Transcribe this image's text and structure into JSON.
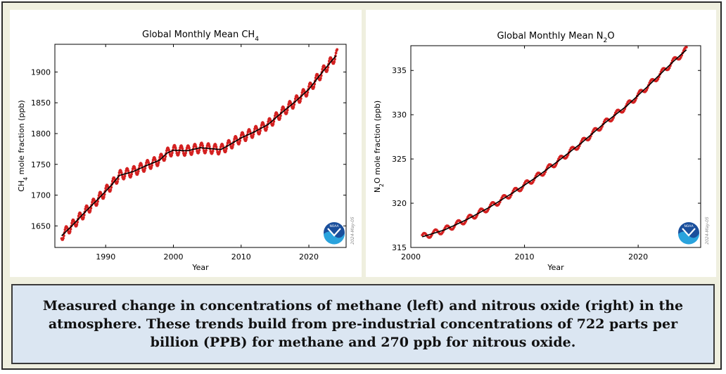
{
  "chart_data": [
    {
      "type": "line",
      "title_prefix": "Global Monthly Mean CH",
      "title_sub": "4",
      "xlabel": "Year",
      "ylabel_prefix": "CH",
      "ylabel_sub": "4",
      "ylabel_suffix": " mole fraction (ppb)",
      "xlim": [
        1982.5,
        2025.5
      ],
      "ylim": [
        1615,
        1945
      ],
      "xticks": [
        1990,
        2000,
        2010,
        2020
      ],
      "yticks": [
        1650,
        1700,
        1750,
        1800,
        1850,
        1900
      ],
      "series": [
        {
          "color": "#d42020",
          "trend_color": "#000000",
          "seasonal_amplitude": 8,
          "trend": {
            "x": [
              1983.5,
              1985,
              1987,
              1989,
              1991,
              1992,
              1994,
              1996,
              1998,
              1999,
              2000,
              2002,
              2004,
              2006,
              2007,
              2008,
              2010,
              2012,
              2014,
              2016,
              2018,
              2020,
              2022,
              2024.2
            ],
            "y": [
              1634,
              1650,
              1673,
              1695,
              1718,
              1732,
              1738,
              1748,
              1757,
              1768,
              1773,
              1772,
              1777,
              1775,
              1774,
              1780,
              1793,
              1803,
              1815,
              1834,
              1852,
              1872,
              1900,
              1929
            ]
          }
        }
      ],
      "watermark": "2024-May-05",
      "logo_text": "NOAA"
    },
    {
      "type": "line",
      "title_prefix": "Global Monthly Mean N",
      "title_sub": "2",
      "title_suffix": "O",
      "xlabel": "Year",
      "ylabel_prefix": "N",
      "ylabel_sub": "2",
      "ylabel_suffix": "O mole fraction (ppb)",
      "xlim": [
        2000,
        2025.5
      ],
      "ylim": [
        315,
        337.8
      ],
      "xticks": [
        2000,
        2010,
        2020
      ],
      "yticks": [
        315,
        320,
        325,
        330,
        335
      ],
      "series": [
        {
          "color": "#d42020",
          "trend_color": "#000000",
          "seasonal_amplitude": 0.35,
          "trend": {
            "x": [
              2001,
              2003,
              2005,
              2007,
              2009,
              2011,
              2013,
              2015,
              2017,
              2019,
              2021,
              2023,
              2024.3
            ],
            "y": [
              316.2,
              317.0,
              318.2,
              319.6,
              321.2,
              322.9,
              324.8,
              326.8,
              329.0,
              331.0,
              333.4,
              335.9,
              337.4
            ]
          }
        }
      ],
      "watermark": "2024-May-05",
      "logo_text": "NOAA"
    }
  ],
  "caption": "Measured change in concentrations of methane (left) and nitrous oxide (right) in the atmosphere.  These trends build from pre-industrial concentrations of 722 parts per billion (PPB) for methane and 270 ppb for nitrous oxide."
}
